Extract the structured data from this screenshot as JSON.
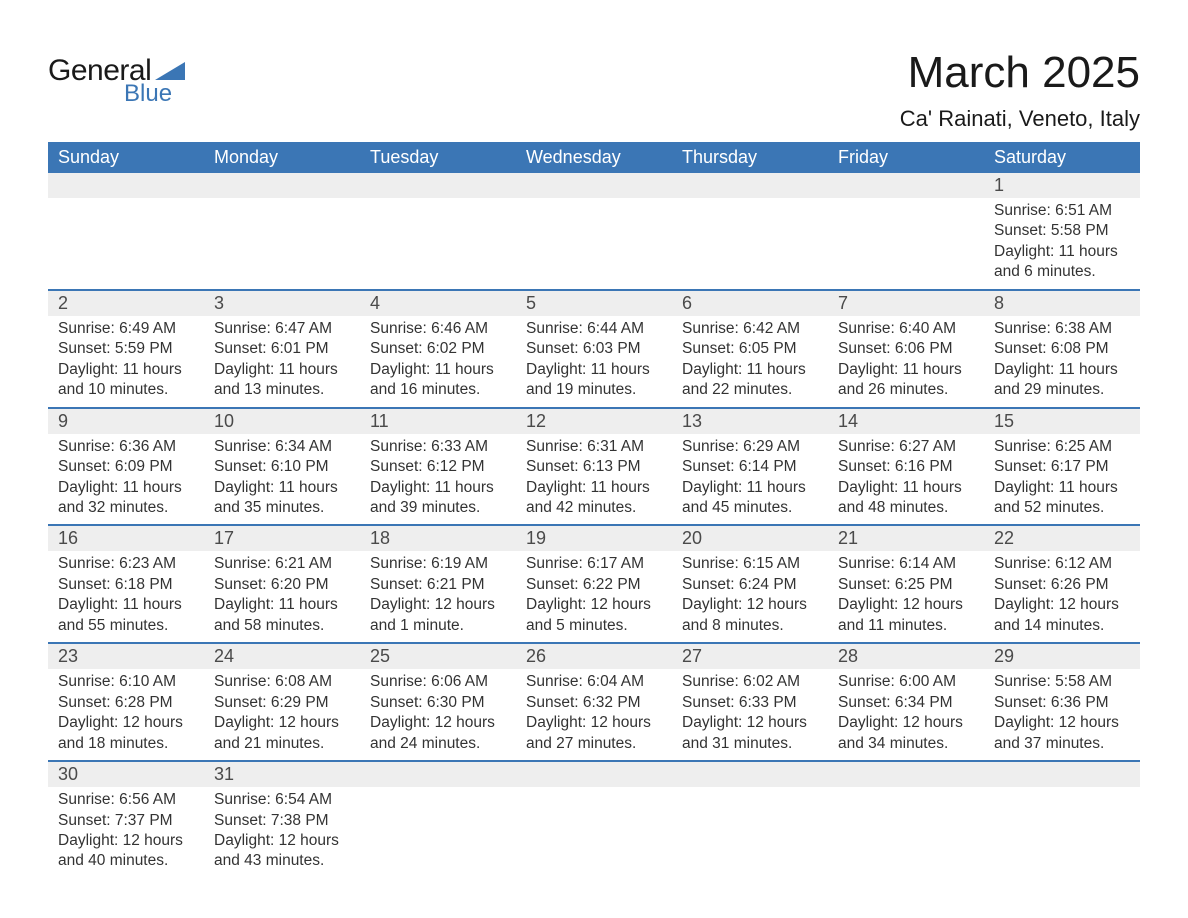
{
  "logo": {
    "text_general": "General",
    "text_blue": "Blue",
    "shape_color": "#3b76b5"
  },
  "header": {
    "month_title": "March 2025",
    "location": "Ca' Rainati, Veneto, Italy"
  },
  "colors": {
    "header_bg": "#3b76b5",
    "header_text": "#ffffff",
    "daynum_bg": "#eeeeee",
    "week_divider": "#3b76b5",
    "body_bg": "#ffffff",
    "text": "#333333"
  },
  "day_headers": [
    "Sunday",
    "Monday",
    "Tuesday",
    "Wednesday",
    "Thursday",
    "Friday",
    "Saturday"
  ],
  "labels": {
    "sunrise": "Sunrise:",
    "sunset": "Sunset:",
    "daylight": "Daylight:"
  },
  "weeks": [
    [
      null,
      null,
      null,
      null,
      null,
      null,
      {
        "n": "1",
        "sunrise": "6:51 AM",
        "sunset": "5:58 PM",
        "daylight": "11 hours and 6 minutes."
      }
    ],
    [
      {
        "n": "2",
        "sunrise": "6:49 AM",
        "sunset": "5:59 PM",
        "daylight": "11 hours and 10 minutes."
      },
      {
        "n": "3",
        "sunrise": "6:47 AM",
        "sunset": "6:01 PM",
        "daylight": "11 hours and 13 minutes."
      },
      {
        "n": "4",
        "sunrise": "6:46 AM",
        "sunset": "6:02 PM",
        "daylight": "11 hours and 16 minutes."
      },
      {
        "n": "5",
        "sunrise": "6:44 AM",
        "sunset": "6:03 PM",
        "daylight": "11 hours and 19 minutes."
      },
      {
        "n": "6",
        "sunrise": "6:42 AM",
        "sunset": "6:05 PM",
        "daylight": "11 hours and 22 minutes."
      },
      {
        "n": "7",
        "sunrise": "6:40 AM",
        "sunset": "6:06 PM",
        "daylight": "11 hours and 26 minutes."
      },
      {
        "n": "8",
        "sunrise": "6:38 AM",
        "sunset": "6:08 PM",
        "daylight": "11 hours and 29 minutes."
      }
    ],
    [
      {
        "n": "9",
        "sunrise": "6:36 AM",
        "sunset": "6:09 PM",
        "daylight": "11 hours and 32 minutes."
      },
      {
        "n": "10",
        "sunrise": "6:34 AM",
        "sunset": "6:10 PM",
        "daylight": "11 hours and 35 minutes."
      },
      {
        "n": "11",
        "sunrise": "6:33 AM",
        "sunset": "6:12 PM",
        "daylight": "11 hours and 39 minutes."
      },
      {
        "n": "12",
        "sunrise": "6:31 AM",
        "sunset": "6:13 PM",
        "daylight": "11 hours and 42 minutes."
      },
      {
        "n": "13",
        "sunrise": "6:29 AM",
        "sunset": "6:14 PM",
        "daylight": "11 hours and 45 minutes."
      },
      {
        "n": "14",
        "sunrise": "6:27 AM",
        "sunset": "6:16 PM",
        "daylight": "11 hours and 48 minutes."
      },
      {
        "n": "15",
        "sunrise": "6:25 AM",
        "sunset": "6:17 PM",
        "daylight": "11 hours and 52 minutes."
      }
    ],
    [
      {
        "n": "16",
        "sunrise": "6:23 AM",
        "sunset": "6:18 PM",
        "daylight": "11 hours and 55 minutes."
      },
      {
        "n": "17",
        "sunrise": "6:21 AM",
        "sunset": "6:20 PM",
        "daylight": "11 hours and 58 minutes."
      },
      {
        "n": "18",
        "sunrise": "6:19 AM",
        "sunset": "6:21 PM",
        "daylight": "12 hours and 1 minute."
      },
      {
        "n": "19",
        "sunrise": "6:17 AM",
        "sunset": "6:22 PM",
        "daylight": "12 hours and 5 minutes."
      },
      {
        "n": "20",
        "sunrise": "6:15 AM",
        "sunset": "6:24 PM",
        "daylight": "12 hours and 8 minutes."
      },
      {
        "n": "21",
        "sunrise": "6:14 AM",
        "sunset": "6:25 PM",
        "daylight": "12 hours and 11 minutes."
      },
      {
        "n": "22",
        "sunrise": "6:12 AM",
        "sunset": "6:26 PM",
        "daylight": "12 hours and 14 minutes."
      }
    ],
    [
      {
        "n": "23",
        "sunrise": "6:10 AM",
        "sunset": "6:28 PM",
        "daylight": "12 hours and 18 minutes."
      },
      {
        "n": "24",
        "sunrise": "6:08 AM",
        "sunset": "6:29 PM",
        "daylight": "12 hours and 21 minutes."
      },
      {
        "n": "25",
        "sunrise": "6:06 AM",
        "sunset": "6:30 PM",
        "daylight": "12 hours and 24 minutes."
      },
      {
        "n": "26",
        "sunrise": "6:04 AM",
        "sunset": "6:32 PM",
        "daylight": "12 hours and 27 minutes."
      },
      {
        "n": "27",
        "sunrise": "6:02 AM",
        "sunset": "6:33 PM",
        "daylight": "12 hours and 31 minutes."
      },
      {
        "n": "28",
        "sunrise": "6:00 AM",
        "sunset": "6:34 PM",
        "daylight": "12 hours and 34 minutes."
      },
      {
        "n": "29",
        "sunrise": "5:58 AM",
        "sunset": "6:36 PM",
        "daylight": "12 hours and 37 minutes."
      }
    ],
    [
      {
        "n": "30",
        "sunrise": "6:56 AM",
        "sunset": "7:37 PM",
        "daylight": "12 hours and 40 minutes."
      },
      {
        "n": "31",
        "sunrise": "6:54 AM",
        "sunset": "7:38 PM",
        "daylight": "12 hours and 43 minutes."
      },
      null,
      null,
      null,
      null,
      null
    ]
  ]
}
